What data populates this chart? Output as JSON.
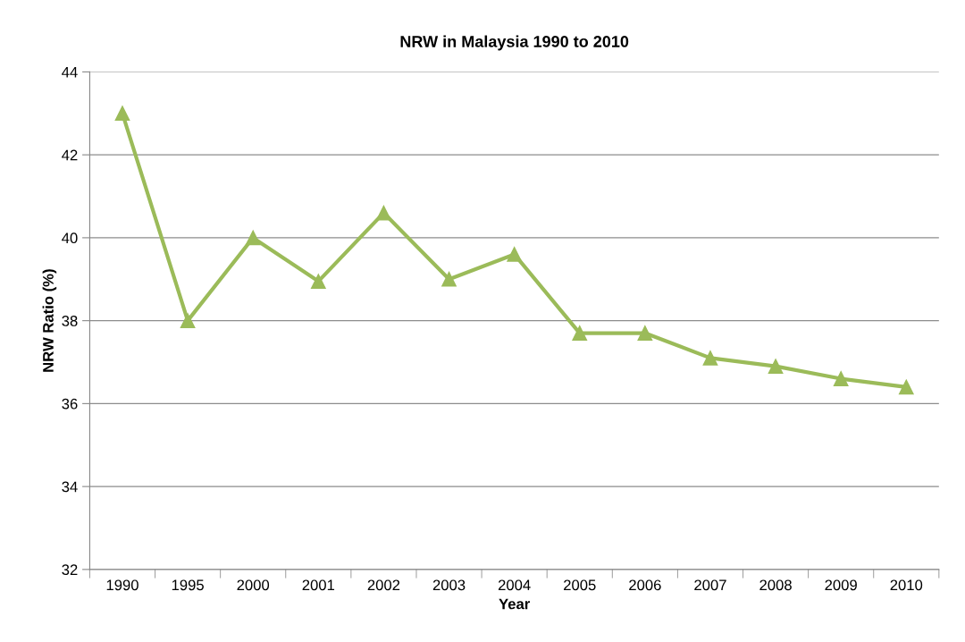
{
  "chart_data": {
    "type": "line",
    "title": "NRW in Malaysia 1990 to 2010",
    "xlabel": "Year",
    "ylabel": "NRW Ratio (%)",
    "categories": [
      "1990",
      "1995",
      "2000",
      "2001",
      "2002",
      "2003",
      "2004",
      "2005",
      "2006",
      "2007",
      "2008",
      "2009",
      "2010"
    ],
    "series": [
      {
        "color": "#9bbb59",
        "values": [
          43.0,
          38.0,
          40.0,
          38.95,
          40.6,
          39.0,
          39.6,
          37.7,
          37.7,
          37.1,
          36.9,
          36.6,
          36.4
        ]
      }
    ],
    "ylim": [
      32,
      44
    ],
    "yticks": [
      32,
      34,
      36,
      38,
      40,
      42,
      44
    ],
    "grid": "y",
    "marker": "triangle",
    "line_style": "solid"
  }
}
